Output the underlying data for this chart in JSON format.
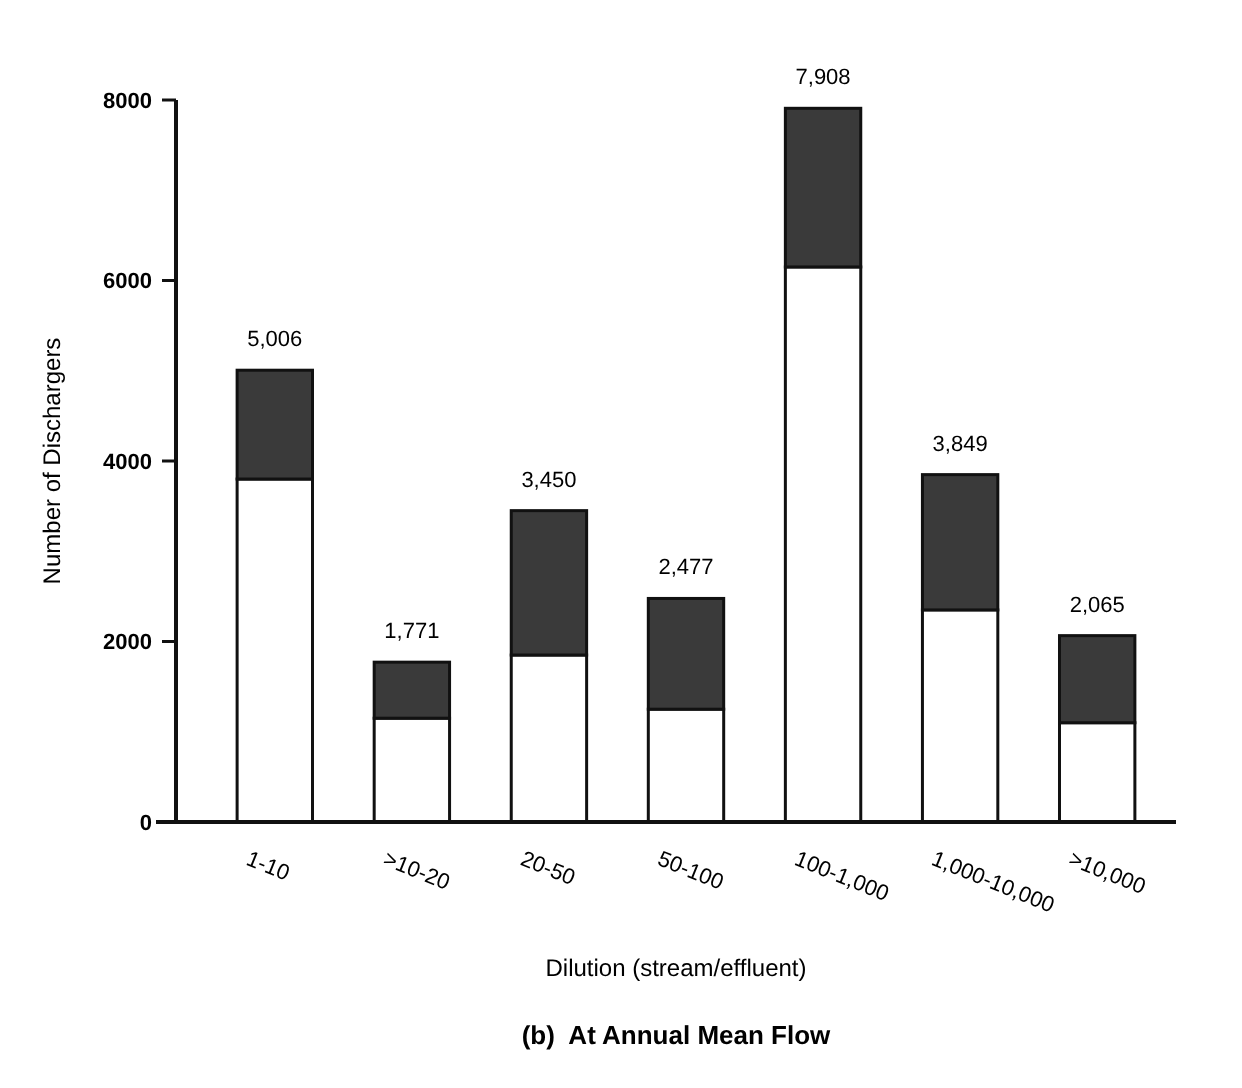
{
  "chart_data": {
    "type": "bar",
    "title": "(b)  At Annual Mean Flow",
    "xlabel": "Dilution (stream/effluent)",
    "ylabel": "Number of Dischargers",
    "categories": [
      "1-10",
      ">10-20",
      "20-50",
      "50-100",
      "100-1,000",
      "1,000-10,000",
      ">10,000"
    ],
    "series": [
      {
        "color": "#ffffff",
        "values": [
          3800,
          1150,
          1850,
          1250,
          6150,
          2350,
          1100
        ]
      },
      {
        "color": "#3a3a3a",
        "values": [
          1206,
          621,
          1600,
          1227,
          1758,
          1499,
          965
        ]
      }
    ],
    "stacked": true,
    "totals": [
      "5,006",
      "1,771",
      "3,450",
      "2,477",
      "7,908",
      "3,849",
      "2,065"
    ],
    "ylim": [
      0,
      8000
    ],
    "yticks": [
      0,
      2000,
      4000,
      6000,
      8000
    ],
    "grid": false
  }
}
